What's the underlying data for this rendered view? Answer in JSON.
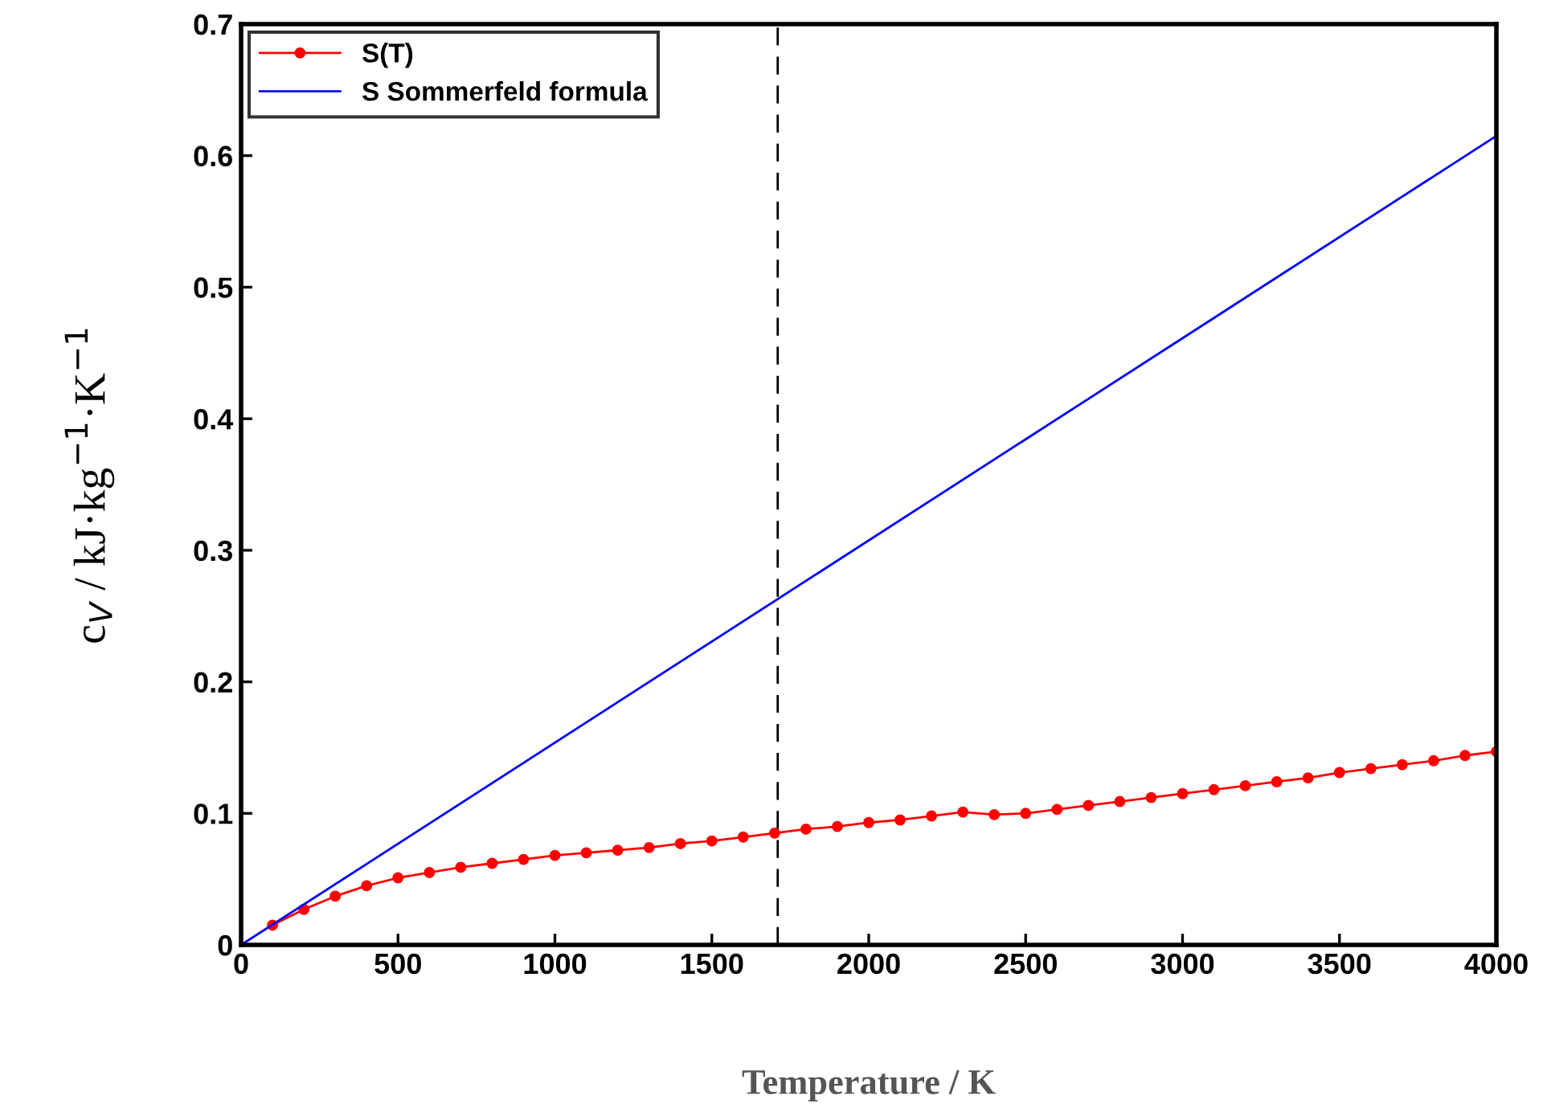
{
  "chart_data": {
    "type": "line",
    "xlabel": "Temperature / K",
    "ylabel": "c$_{V}$ / kJ·kg$^{−1}$·K$^{−1}$",
    "xlim": [
      0,
      4000
    ],
    "xticks": [
      0,
      500,
      1000,
      1500,
      2000,
      2500,
      3000,
      3500,
      4000
    ],
    "ylim": [
      0,
      0.7
    ],
    "yticks": [
      0,
      0.1,
      0.2,
      0.3,
      0.4,
      0.5,
      0.6,
      0.7
    ],
    "grid": false,
    "legend": "top left",
    "series": [
      {
        "name": "S(T)",
        "color": "#ff0000",
        "marker": "circle",
        "x": [
          100,
          200,
          300,
          400,
          500,
          600,
          700,
          800,
          900,
          1000,
          1100,
          1200,
          1300,
          1400,
          1500,
          1600,
          1700,
          1800,
          1900,
          2000,
          2100,
          2200,
          2300,
          2400,
          2500,
          2600,
          2700,
          2800,
          2900,
          3000,
          3100,
          3200,
          3300,
          3400,
          3500,
          3600,
          3700,
          3800,
          3900,
          4000
        ],
        "values": [
          0.015,
          0.027,
          0.037,
          0.045,
          0.051,
          0.055,
          0.059,
          0.062,
          0.065,
          0.068,
          0.07,
          0.072,
          0.074,
          0.077,
          0.079,
          0.082,
          0.085,
          0.088,
          0.09,
          0.093,
          0.095,
          0.098,
          0.101,
          0.099,
          0.1,
          0.103,
          0.106,
          0.109,
          0.112,
          0.115,
          0.118,
          0.121,
          0.124,
          0.127,
          0.131,
          0.134,
          0.137,
          0.14,
          0.144,
          0.147
        ]
      },
      {
        "name": "S Sommerfeld formula",
        "color": "#0000ff",
        "marker": "none",
        "x": [
          0,
          4000
        ],
        "values": [
          0,
          0.615
        ]
      }
    ],
    "ref_lines": [
      {
        "axis": "x",
        "value": 1710,
        "color": "#000000",
        "line_style": "dashed"
      }
    ]
  }
}
